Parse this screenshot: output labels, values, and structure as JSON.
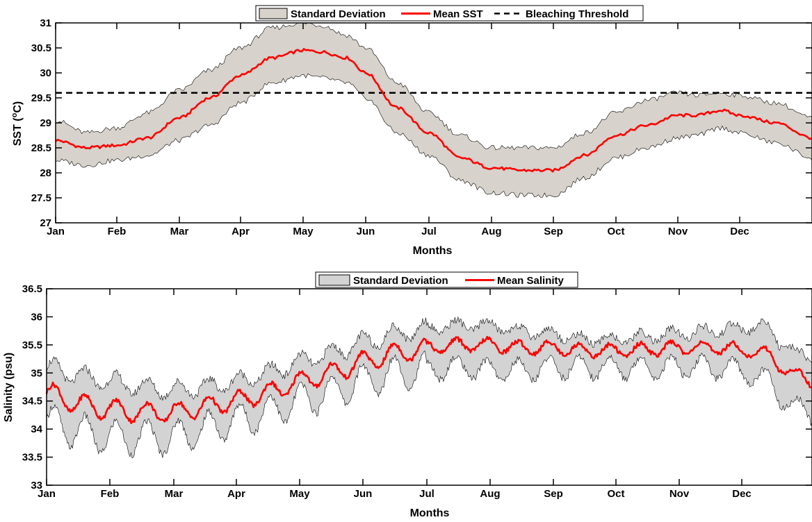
{
  "chart_data": [
    {
      "type": "line",
      "xlabel": "Months",
      "ylabel": "SST (°C)",
      "ylabel_main": "SST (",
      "ylabel_sup": "o",
      "ylabel_unit": "C)",
      "ylim": [
        27,
        31
      ],
      "yticks": [
        27,
        27.5,
        28,
        28.5,
        29,
        29.5,
        30,
        30.5,
        31
      ],
      "categories": [
        "Jan",
        "Feb",
        "Mar",
        "Apr",
        "May",
        "Jun",
        "Jul",
        "Aug",
        "Sep",
        "Oct",
        "Nov",
        "Dec"
      ],
      "grid": false,
      "legend_position": "top-center",
      "legend": [
        "Standard Deviation",
        "Mean SST",
        "Bleaching Threshold"
      ],
      "threshold": 29.6,
      "mean_x": [
        0,
        0.5,
        1,
        1.5,
        2,
        2.5,
        3,
        3.5,
        4,
        4.3,
        4.7,
        5,
        5.5,
        6,
        6.5,
        7,
        7.5,
        8,
        8.5,
        9,
        9.5,
        10,
        10.3,
        10.7,
        11,
        11.5,
        12
      ],
      "mean": [
        28.65,
        28.5,
        28.55,
        28.7,
        29.1,
        29.5,
        29.95,
        30.3,
        30.45,
        30.42,
        30.3,
        30.0,
        29.3,
        28.8,
        28.3,
        28.1,
        28.05,
        28.05,
        28.35,
        28.75,
        28.95,
        29.15,
        29.15,
        29.25,
        29.15,
        29.0,
        28.7
      ],
      "std_upper": [
        29.05,
        28.8,
        28.9,
        29.2,
        29.65,
        30.05,
        30.5,
        30.9,
        31.0,
        30.95,
        30.75,
        30.5,
        29.8,
        29.2,
        28.75,
        28.5,
        28.5,
        28.5,
        28.8,
        29.2,
        29.45,
        29.6,
        29.55,
        29.6,
        29.55,
        29.4,
        29.1
      ],
      "std_lower": [
        28.25,
        28.15,
        28.25,
        28.35,
        28.65,
        28.95,
        29.4,
        29.8,
        29.95,
        29.9,
        29.8,
        29.5,
        28.8,
        28.35,
        27.85,
        27.6,
        27.55,
        27.55,
        27.9,
        28.3,
        28.5,
        28.7,
        28.75,
        28.9,
        28.8,
        28.6,
        28.3
      ]
    },
    {
      "type": "line",
      "xlabel": "Months",
      "ylabel": "Salinity (psu)",
      "ylim": [
        33,
        36.5
      ],
      "yticks": [
        33,
        33.5,
        34,
        34.5,
        35,
        35.5,
        36,
        36.5
      ],
      "categories": [
        "Jan",
        "Feb",
        "Mar",
        "Apr",
        "May",
        "Jun",
        "Jul",
        "Aug",
        "Sep",
        "Oct",
        "Nov",
        "Dec"
      ],
      "grid": false,
      "legend_position": "top-center",
      "legend": [
        "Standard Deviation",
        "Mean Salinity"
      ],
      "mean_x": [
        0,
        0.5,
        1,
        1.5,
        2,
        2.5,
        3,
        3.5,
        4,
        4.5,
        5,
        5.5,
        6,
        6.5,
        7,
        7.5,
        8,
        8.5,
        9,
        9.5,
        10,
        10.5,
        11,
        11.3,
        11.6,
        12
      ],
      "mean": [
        34.65,
        34.45,
        34.35,
        34.3,
        34.3,
        34.4,
        34.5,
        34.65,
        34.85,
        35.0,
        35.2,
        35.35,
        35.45,
        35.5,
        35.5,
        35.45,
        35.45,
        35.4,
        35.4,
        35.42,
        35.45,
        35.45,
        35.42,
        35.35,
        35.1,
        34.8
      ],
      "std_upper": [
        35.1,
        34.95,
        34.85,
        34.75,
        34.7,
        34.75,
        34.85,
        35.0,
        35.2,
        35.35,
        35.55,
        35.7,
        35.8,
        35.85,
        35.85,
        35.75,
        35.7,
        35.6,
        35.6,
        35.65,
        35.7,
        35.75,
        35.8,
        35.85,
        35.5,
        35.2
      ],
      "std_lower": [
        34.15,
        33.95,
        33.85,
        33.85,
        33.85,
        34.0,
        34.15,
        34.3,
        34.5,
        34.65,
        34.85,
        35.0,
        35.05,
        35.1,
        35.05,
        35.05,
        35.1,
        35.1,
        35.1,
        35.1,
        35.1,
        35.1,
        35.05,
        34.9,
        34.55,
        34.2
      ],
      "oscillation_amplitude_mean": 0.17,
      "oscillation_amplitude_band": 0.3
    }
  ]
}
